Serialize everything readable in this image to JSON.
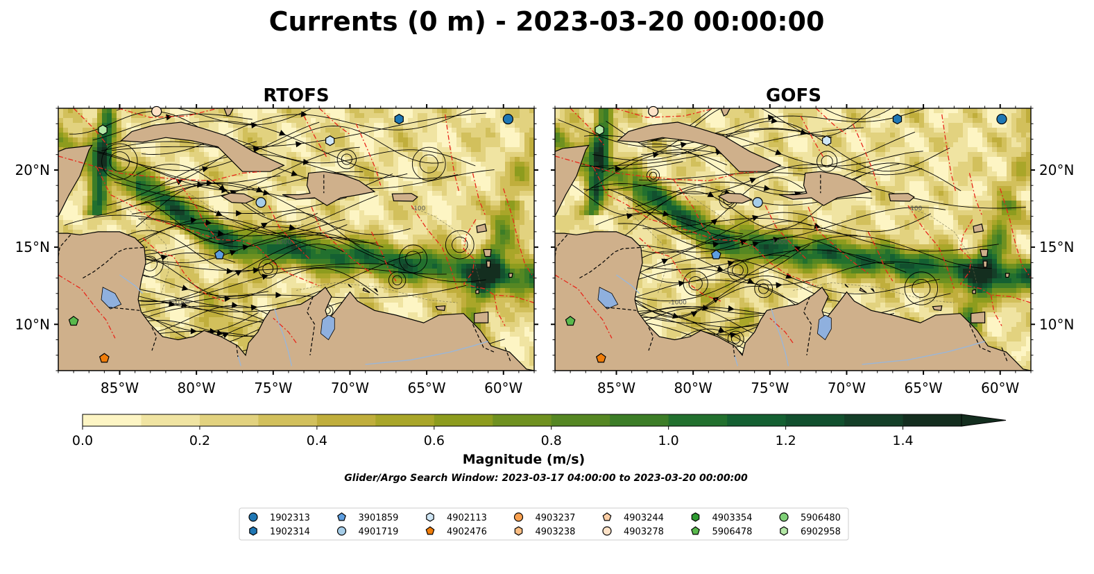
{
  "figure": {
    "title": "Currents (0 m) - 2023-03-20 00:00:00",
    "subtitle": "Glider/Argo Search Window: 2023-03-17 04:00:00 to 2023-03-20 00:00:00"
  },
  "panels": [
    {
      "id": "rtofs",
      "title": "RTOFS",
      "lat_ticks_side": "left"
    },
    {
      "id": "gofs",
      "title": "GOFS",
      "lat_ticks_side": "right"
    }
  ],
  "map": {
    "lon_range": [
      -89,
      -58
    ],
    "lat_range": [
      7,
      24
    ],
    "lon_ticks": [
      -85,
      -80,
      -75,
      -70,
      -65,
      -60
    ],
    "lon_tick_labels": [
      "85°W",
      "80°W",
      "75°W",
      "70°W",
      "65°W",
      "60°W"
    ],
    "lat_ticks": [
      10,
      15,
      20
    ],
    "lat_tick_labels": [
      "10°N",
      "15°N",
      "20°N"
    ],
    "colors": {
      "land": "#cfb08b",
      "eez_line": "#e8261a",
      "border": "#000000",
      "lakes": "#8fb0de",
      "rivers": "#9ab6d8"
    },
    "contour_labels": [
      "-1000",
      "-100"
    ]
  },
  "colorbar": {
    "label": "Magnitude (m/s)",
    "min": 0.0,
    "max": 1.5,
    "extend": "max",
    "ticks": [
      0.0,
      0.2,
      0.4,
      0.6,
      0.8,
      1.0,
      1.2,
      1.4
    ],
    "tick_labels": [
      "0.0",
      "0.2",
      "0.4",
      "0.6",
      "0.8",
      "1.0",
      "1.2",
      "1.4"
    ],
    "colors": [
      "#fdf5c4",
      "#f0e4a2",
      "#e2d27f",
      "#d2c05c",
      "#c0ae3c",
      "#a9a629",
      "#8d9c1e",
      "#6f9120",
      "#558723",
      "#3c7d27",
      "#22702e",
      "#146032",
      "#12502e",
      "#143f28",
      "#142e1f"
    ]
  },
  "platforms": [
    {
      "id": "1902313",
      "marker": "circle",
      "color": "#1f77b4",
      "rtofs": [
        -59.7,
        23.3
      ],
      "gofs": [
        -59.9,
        23.3
      ]
    },
    {
      "id": "1902314",
      "marker": "hexagon",
      "color": "#1f77b4",
      "rtofs": [
        -66.8,
        23.3
      ],
      "gofs": [
        -66.7,
        23.3
      ]
    },
    {
      "id": "3901859",
      "marker": "pentagon",
      "color": "#5d9ee0",
      "rtofs": [
        -78.5,
        14.5
      ],
      "gofs": [
        -78.5,
        14.5
      ]
    },
    {
      "id": "4901719",
      "marker": "circle",
      "color": "#a6cde8",
      "rtofs": [
        -75.8,
        17.9
      ],
      "gofs": [
        -75.8,
        17.9
      ]
    },
    {
      "id": "4902113",
      "marker": "hexagon",
      "color": "#cfe6f5",
      "rtofs": [
        -71.3,
        21.9
      ],
      "gofs": [
        -71.3,
        21.9
      ]
    },
    {
      "id": "4902476",
      "marker": "pentagon",
      "color": "#f07d0a",
      "rtofs": [
        -86.0,
        7.8
      ],
      "gofs": [
        -86.0,
        7.8
      ]
    },
    {
      "id": "4903237",
      "marker": "circle",
      "color": "#f9a04f",
      "rtofs": null,
      "gofs": null
    },
    {
      "id": "4903238",
      "marker": "hexagon",
      "color": "#fcbe83",
      "rtofs": null,
      "gofs": null
    },
    {
      "id": "4903244",
      "marker": "pentagon",
      "color": "#fdcfa6",
      "rtofs": null,
      "gofs": null
    },
    {
      "id": "4903278",
      "marker": "circle",
      "color": "#fee2c7",
      "rtofs": [
        -82.6,
        23.8
      ],
      "gofs": [
        -82.6,
        23.8
      ]
    },
    {
      "id": "4903354",
      "marker": "hexagon",
      "color": "#2e9a31",
      "rtofs": null,
      "gofs": null
    },
    {
      "id": "5906478",
      "marker": "pentagon",
      "color": "#59b94d",
      "rtofs": [
        -88.0,
        10.2
      ],
      "gofs": [
        -88.0,
        10.2
      ]
    },
    {
      "id": "5906480",
      "marker": "circle",
      "color": "#7fd077",
      "rtofs": null,
      "gofs": null
    },
    {
      "id": "6902958",
      "marker": "hexagon",
      "color": "#b3e7a6",
      "rtofs": [
        -86.1,
        22.6
      ],
      "gofs": [
        -86.1,
        22.6
      ]
    }
  ]
}
